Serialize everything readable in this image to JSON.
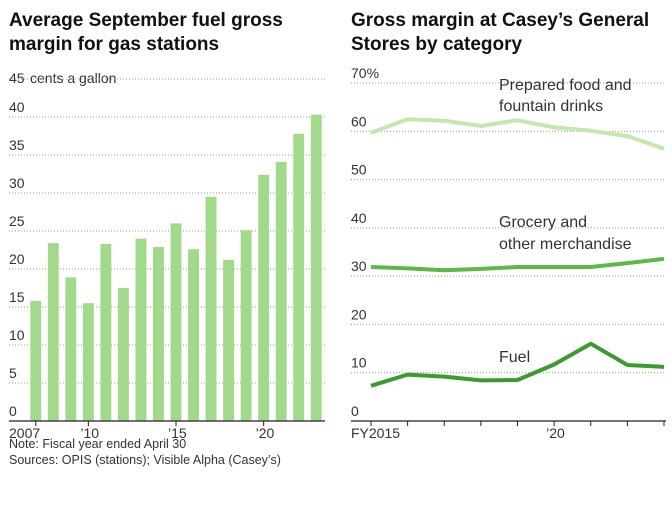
{
  "chart_data": [
    {
      "type": "bar",
      "title_lines": [
        "Average September fuel gross",
        "margin for gas stations"
      ],
      "y_unit": "cents a gallon",
      "ylim": [
        0,
        45
      ],
      "yticks": [
        0,
        5,
        10,
        15,
        20,
        25,
        30,
        35,
        40,
        45
      ],
      "ytick_labels": [
        "0",
        "5",
        "10",
        "15",
        "20",
        "25",
        "30",
        "35",
        "40",
        "45"
      ],
      "categories": [
        2007,
        2008,
        2009,
        2010,
        2011,
        2012,
        2013,
        2014,
        2015,
        2016,
        2017,
        2018,
        2019,
        2020,
        2021,
        2022,
        2023
      ],
      "values": [
        15.8,
        23.4,
        18.9,
        15.5,
        23.3,
        17.5,
        24.0,
        22.9,
        26.0,
        22.6,
        29.5,
        21.2,
        25.1,
        32.4,
        34.1,
        37.8,
        40.3
      ],
      "xtick_labels": [
        {
          "index": 0,
          "label": "2007"
        },
        {
          "index": 3,
          "label": "’10"
        },
        {
          "index": 8,
          "label": "’15"
        },
        {
          "index": 13,
          "label": "’20"
        }
      ],
      "bar_color": "#a3d98a",
      "grid": true
    },
    {
      "type": "line",
      "title_lines": [
        "Gross margin at Casey’s General",
        "Stores by category"
      ],
      "ylim": [
        0,
        70
      ],
      "yticks": [
        0,
        10,
        20,
        30,
        40,
        50,
        60,
        70
      ],
      "ytick_labels": [
        "0",
        "10",
        "20",
        "30",
        "40",
        "50",
        "60",
        "70%"
      ],
      "x": [
        2015,
        2016,
        2017,
        2018,
        2019,
        2020,
        2021,
        2022,
        2023
      ],
      "xtick_labels": [
        {
          "value": 2015,
          "label": "FY2015"
        },
        {
          "value": 2020,
          "label": "’20"
        }
      ],
      "series": [
        {
          "name_lines": [
            "Prepared food and",
            "fountain drinks"
          ],
          "values": [
            59.7,
            62.5,
            62.2,
            61.1,
            62.3,
            60.8,
            60.1,
            59.0,
            56.4
          ],
          "color": "#c5e6ac"
        },
        {
          "name_lines": [
            "Grocery and",
            "other merchandise"
          ],
          "values": [
            31.9,
            31.6,
            31.2,
            31.5,
            31.9,
            31.9,
            31.9,
            32.7,
            33.6
          ],
          "color": "#5eb846"
        },
        {
          "name_lines": [
            "Fuel"
          ],
          "values": [
            7.3,
            9.6,
            9.2,
            8.4,
            8.5,
            11.7,
            16.0,
            11.6,
            11.2
          ],
          "color": "#3d9a31"
        }
      ],
      "grid": true
    }
  ],
  "footer": {
    "note": "Note: Fiscal year ended April 30",
    "sources": "Sources: OPIS (stations); Visible Alpha (Casey’s)"
  }
}
